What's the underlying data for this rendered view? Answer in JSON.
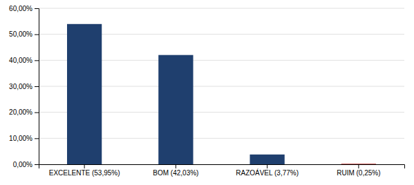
{
  "chart_data": {
    "type": "bar",
    "categories": [
      "EXCELENTE (53,95%)",
      "BOM (42,03%)",
      "RAZOÁVEL (3,77%)",
      "RUIM (0,25%)"
    ],
    "values": [
      53.95,
      42.03,
      3.77,
      0.25
    ],
    "colors": [
      "#1F3F6E",
      "#1F3F6E",
      "#1F3F6E",
      "#C0504D"
    ],
    "ylim": [
      0,
      60
    ],
    "yticks": [
      {
        "value": 0,
        "label": "0,00%"
      },
      {
        "value": 10,
        "label": "10,00%"
      },
      {
        "value": 20,
        "label": "20,00%"
      },
      {
        "value": 30,
        "label": "30,00%"
      },
      {
        "value": 40,
        "label": "40,00%"
      },
      {
        "value": 50,
        "label": "50,00%"
      },
      {
        "value": 60,
        "label": "60,00%"
      }
    ],
    "grid": true
  }
}
